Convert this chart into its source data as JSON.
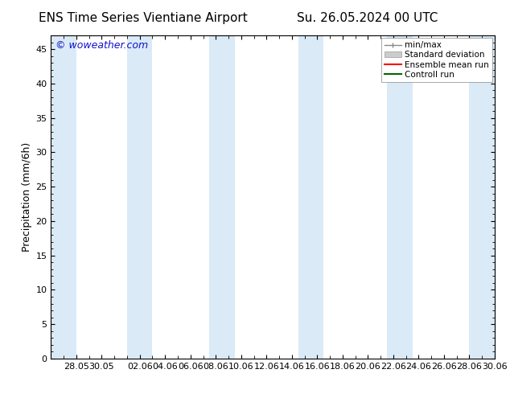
{
  "title_left": "ENS Time Series Vientiane Airport",
  "title_right": "Su. 26.05.2024 00 UTC",
  "ylabel": "Precipitation (mm/6h)",
  "watermark": "© woweather.com",
  "background_color": "#ffffff",
  "plot_bg_color": "#ffffff",
  "ylim": [
    0,
    47
  ],
  "yticks": [
    0,
    5,
    10,
    15,
    20,
    25,
    30,
    35,
    40,
    45
  ],
  "x_min": 0,
  "x_max": 35,
  "shaded_regions": [
    [
      0.0,
      2.0
    ],
    [
      6.0,
      8.0
    ],
    [
      12.5,
      14.5
    ],
    [
      19.5,
      21.5
    ],
    [
      26.5,
      28.5
    ],
    [
      33.0,
      35.0
    ]
  ],
  "xtick_positions": [
    2,
    4,
    7,
    9,
    11,
    13,
    15,
    17,
    19,
    21,
    23,
    25,
    27,
    29,
    31,
    33,
    35
  ],
  "xtick_labels": [
    "28.05",
    "30.05",
    "02.06",
    "04.06",
    "06.06",
    "08.06",
    "10.06",
    "12.06",
    "14.06",
    "16.06",
    "18.06",
    "20.06",
    "22.06",
    "24.06",
    "26.06",
    "28.06",
    "30.06"
  ],
  "shaded_color": "#daeaf7",
  "legend_entries": [
    {
      "label": "min/max",
      "color": "#999999",
      "style": "errorbar"
    },
    {
      "label": "Standard deviation",
      "color": "#cccccc",
      "style": "bar"
    },
    {
      "label": "Ensemble mean run",
      "color": "#ff0000",
      "style": "line"
    },
    {
      "label": "Controll run",
      "color": "#006600",
      "style": "line"
    }
  ],
  "title_fontsize": 11,
  "axis_fontsize": 8,
  "legend_fontsize": 7.5,
  "watermark_color": "#1111cc",
  "watermark_fontsize": 9
}
